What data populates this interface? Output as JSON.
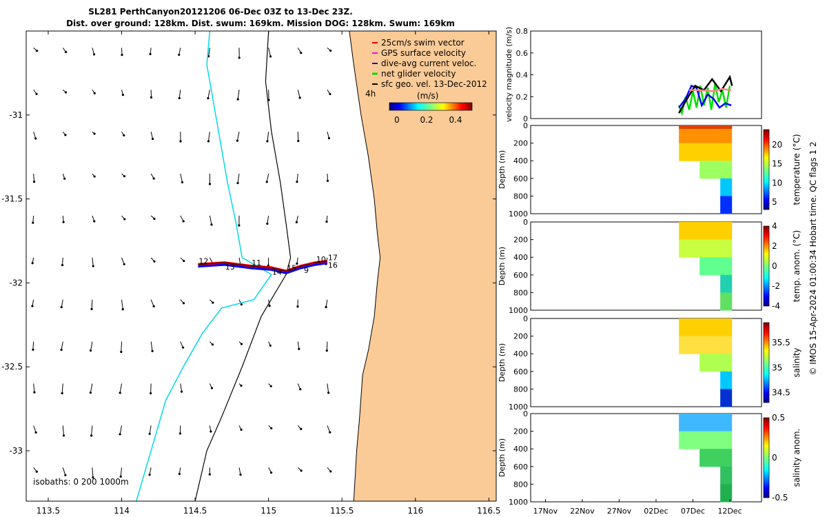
{
  "title": {
    "line1": "SL281 PerthCanyon20121206 06-Dec 03Z to 13-Dec 23Z.",
    "line2": "Dist. over ground: 128km. Dist. swum: 169km. Mission DOG: 128km. Swum: 169km"
  },
  "side_note": "© IMOS 15-Apr-2024 01:00:34 Hobart time. QC flags 1  2",
  "colors": {
    "land": "#FBCB97",
    "isobath200": "#00D8E8",
    "isobath1000": "#000000",
    "swim": "#FF0000",
    "gps": "#FF00FF",
    "current": "#0000FF",
    "net": "#00E000",
    "sfc": "#000000"
  },
  "chart_data": [
    {
      "type": "map",
      "xlim": [
        113.35,
        116.55
      ],
      "ylim": [
        -33.3,
        -30.5
      ],
      "xticks": [
        "113.5",
        "114",
        "114.5",
        "115",
        "115.5",
        "116",
        "116.5"
      ],
      "yticks": [
        "-31",
        "-31.5",
        "-32",
        "-32.5",
        "-33"
      ],
      "isobaths_label": "isobaths: 0   200  1000m",
      "legend": [
        "25cm/s swim vector",
        "GPS surface velocity",
        "dive-avg current veloc.",
        "net glider velocity",
        "sfc geo. vel. 13-Dec-2012"
      ],
      "legend_scale_label": "4h",
      "colorbar": {
        "label": "(m/s)",
        "ticks": [
          "0",
          "0.2",
          "0.4"
        ],
        "range": [
          0,
          0.5
        ]
      },
      "track_day_labels": [
        "12",
        "13",
        "11",
        "14",
        "15",
        "9",
        "10",
        "16",
        "17"
      ],
      "coast": [
        [
          116.55,
          -30.5
        ],
        [
          115.55,
          -30.5
        ],
        [
          115.58,
          -30.7
        ],
        [
          115.63,
          -31.0
        ],
        [
          115.68,
          -31.25
        ],
        [
          115.72,
          -31.5
        ],
        [
          115.74,
          -31.7
        ],
        [
          115.76,
          -31.85
        ],
        [
          115.74,
          -32.0
        ],
        [
          115.72,
          -32.2
        ],
        [
          115.68,
          -32.4
        ],
        [
          115.64,
          -32.55
        ],
        [
          115.62,
          -32.8
        ],
        [
          115.6,
          -33.0
        ],
        [
          115.58,
          -33.3
        ],
        [
          116.55,
          -33.3
        ]
      ],
      "isobath_200": [
        [
          114.6,
          -30.5
        ],
        [
          114.58,
          -30.7
        ],
        [
          114.62,
          -30.9
        ],
        [
          114.66,
          -31.1
        ],
        [
          114.72,
          -31.4
        ],
        [
          114.78,
          -31.65
        ],
        [
          114.82,
          -31.85
        ],
        [
          115.02,
          -31.95
        ],
        [
          114.9,
          -32.1
        ],
        [
          114.68,
          -32.15
        ],
        [
          114.55,
          -32.3
        ],
        [
          114.42,
          -32.5
        ],
        [
          114.3,
          -32.7
        ],
        [
          114.2,
          -33.0
        ],
        [
          114.1,
          -33.3
        ]
      ],
      "isobath_1000": [
        [
          115.0,
          -30.5
        ],
        [
          114.98,
          -30.8
        ],
        [
          115.02,
          -31.1
        ],
        [
          115.08,
          -31.4
        ],
        [
          115.12,
          -31.65
        ],
        [
          115.15,
          -31.85
        ],
        [
          115.12,
          -31.95
        ],
        [
          114.95,
          -32.2
        ],
        [
          114.82,
          -32.5
        ],
        [
          114.68,
          -32.8
        ],
        [
          114.58,
          -33.0
        ],
        [
          114.5,
          -33.3
        ]
      ],
      "track": [
        [
          114.52,
          -31.89
        ],
        [
          114.7,
          -31.88
        ],
        [
          114.88,
          -31.9
        ],
        [
          115.02,
          -31.91
        ],
        [
          115.12,
          -31.93
        ],
        [
          115.22,
          -31.9
        ],
        [
          115.32,
          -31.88
        ],
        [
          115.4,
          -31.87
        ]
      ]
    },
    {
      "type": "line",
      "ylabel": "velocity magnitude (m/s)",
      "ylim": [
        0,
        0.8
      ],
      "yticks": [
        "0",
        "0.2",
        "0.4",
        "0.6",
        "0.8"
      ],
      "x_axis_labels": [
        "17Nov",
        "22Nov",
        "27Nov",
        "02Dec",
        "07Dec",
        "12Dec"
      ],
      "xlim_days": [
        0,
        31.3
      ],
      "series": [
        {
          "color": "#00E000",
          "x": [
            20.1,
            20.5,
            21,
            21.5,
            22,
            22.5,
            23,
            23.5,
            24,
            24.5,
            25,
            25.5,
            26,
            26.5,
            27
          ],
          "values": [
            0.12,
            0.05,
            0.2,
            0.08,
            0.25,
            0.1,
            0.3,
            0.12,
            0.28,
            0.08,
            0.32,
            0.15,
            0.26,
            0.1,
            0.3
          ]
        },
        {
          "color": "#0000FF",
          "x": [
            20.1,
            21,
            21.8,
            22.5,
            23.2,
            24,
            24.8,
            25.6,
            26.4,
            27.2
          ],
          "values": [
            0.1,
            0.18,
            0.3,
            0.28,
            0.12,
            0.22,
            0.18,
            0.1,
            0.14,
            0.12
          ]
        },
        {
          "color": "#000000",
          "x": [
            20.1,
            21.2,
            22.3,
            23.5,
            24.6,
            25.8,
            27,
            27.3
          ],
          "values": [
            0.05,
            0.18,
            0.3,
            0.26,
            0.36,
            0.25,
            0.38,
            0.3
          ]
        },
        {
          "color": "#FF8080",
          "x": [
            21.5,
            23,
            24.5,
            26,
            27.2
          ],
          "values": [
            0.26,
            0.26,
            0.25,
            0.27,
            0.26
          ]
        }
      ]
    },
    {
      "type": "heatmap",
      "ylabel": "Depth (m)",
      "cblabel": "temperature (°C)",
      "yticks": [
        "0",
        "200",
        "400",
        "600",
        "800",
        "1000"
      ],
      "cbticks": [
        "5",
        "10",
        "15",
        "20"
      ],
      "cblim": [
        3,
        24
      ]
    },
    {
      "type": "heatmap",
      "ylabel": "Depth (m)",
      "cblabel": "temp. anom. (°C)",
      "yticks": [
        "0",
        "200",
        "400",
        "600",
        "800",
        "1000"
      ],
      "cbticks": [
        "-4",
        "-2",
        "0",
        "2",
        "4"
      ],
      "cblim": [
        -4,
        4
      ]
    },
    {
      "type": "heatmap",
      "ylabel": "Depth (m)",
      "cblabel": "salinity",
      "yticks": [
        "0",
        "200",
        "400",
        "600",
        "800",
        "1000"
      ],
      "cbticks": [
        "34.5",
        "35",
        "35.5"
      ],
      "cblim": [
        34.3,
        35.9
      ]
    },
    {
      "type": "heatmap",
      "ylabel": "Depth (m)",
      "cblabel": "salinity anom.",
      "yticks": [
        "0",
        "200",
        "400",
        "600",
        "800",
        "1000"
      ],
      "cbticks": [
        "-0.5",
        "0",
        "0.5"
      ],
      "cblim": [
        -0.5,
        0.5
      ]
    }
  ]
}
